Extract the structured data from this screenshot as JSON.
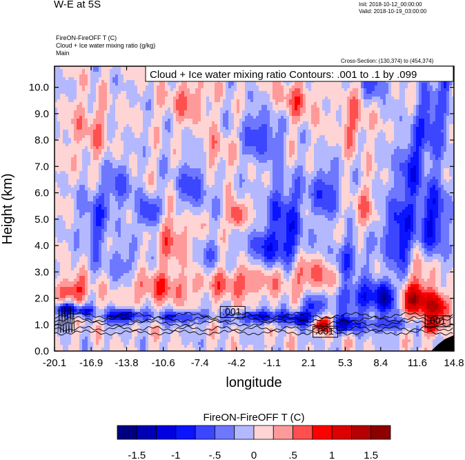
{
  "header": {
    "title": "W-E at 5S",
    "init": "Init: 2018-10-12_00:00:00",
    "valid": "Valid: 2018-10-19_03:00:00",
    "field_line1": "FireON-FireOFF T   (C)",
    "field_line2": "Cloud + Ice water mixing ratio   (g/kg)",
    "field_line3": "Main",
    "cross_section": "Cross-Section: (130,374) to (454,374)"
  },
  "chart_data": {
    "type": "heatmap",
    "title": "W-E at 5S",
    "xlabel": "longitude",
    "ylabel": "Height (km)",
    "xlim": [
      -20.1,
      14.8
    ],
    "ylim": [
      0.0,
      10.8
    ],
    "x_ticks": [
      "-20.1",
      "-16.9",
      "-13.8",
      "-10.6",
      "-7.4",
      "-4.2",
      "-1.1",
      "2.1",
      "5.3",
      "8.4",
      "11.6",
      "14.8"
    ],
    "x_tick_values": [
      -20.1,
      -16.9,
      -13.8,
      -10.6,
      -7.4,
      -4.2,
      -1.1,
      2.1,
      5.3,
      8.4,
      11.6,
      14.8
    ],
    "y_ticks": [
      "0.0",
      "1.0",
      "2.0",
      "3.0",
      "4.0",
      "5.0",
      "6.0",
      "7.0",
      "8.0",
      "9.0",
      "10.0"
    ],
    "y_tick_values": [
      0,
      1,
      2,
      3,
      4,
      5,
      6,
      7,
      8,
      9,
      10
    ],
    "contour_label": "Cloud + Ice water mixing ratio Contours: .001 to .1 by .099",
    "contour_levels": [
      ".001",
      ".001",
      ".001"
    ],
    "contour_level_positions": [
      [
        -5.5,
        1.35
      ],
      [
        2.6,
        0.6
      ],
      [
        12.4,
        1.0
      ]
    ],
    "colorbar": {
      "title": "FireON-FireOFF T  (C)",
      "labels": [
        "-1.5",
        "-1",
        "-.5",
        "0",
        ".5",
        "1",
        "1.5"
      ],
      "colors": [
        "#000080",
        "#0000b4",
        "#0000e0",
        "#0a14ff",
        "#3c46ff",
        "#6e78ff",
        "#b4b9ff",
        "#ffd4d4",
        "#ff9a9a",
        "#ff5050",
        "#ff0000",
        "#dc0000",
        "#b40000",
        "#8c0000"
      ]
    },
    "anomalies": [
      {
        "x": -19.0,
        "y": 1.6,
        "sx": 0.9,
        "sy": 0.25,
        "v": -1.4
      },
      {
        "x": -17.5,
        "y": 1.5,
        "sx": 0.8,
        "sy": 0.2,
        "v": -1.0
      },
      {
        "x": -14.0,
        "y": 1.35,
        "sx": 1.6,
        "sy": 0.25,
        "v": -1.3
      },
      {
        "x": -9.0,
        "y": 1.3,
        "sx": 2.5,
        "sy": 0.25,
        "v": -0.8
      },
      {
        "x": -2.0,
        "y": 1.3,
        "sx": 2.0,
        "sy": 0.25,
        "v": -1.1
      },
      {
        "x": 1.5,
        "y": 1.2,
        "sx": 1.2,
        "sy": 0.25,
        "v": -1.2
      },
      {
        "x": 5.3,
        "y": 1.0,
        "sx": 1.0,
        "sy": 0.3,
        "v": -1.3
      },
      {
        "x": 3.3,
        "y": 1.0,
        "sx": 0.8,
        "sy": 0.3,
        "v": 1.2
      },
      {
        "x": 6.5,
        "y": 2.0,
        "sx": 1.8,
        "sy": 0.6,
        "v": -0.9
      },
      {
        "x": 8.8,
        "y": 2.0,
        "sx": 0.9,
        "sy": 0.6,
        "v": -1.2
      },
      {
        "x": 11.5,
        "y": 1.9,
        "sx": 1.3,
        "sy": 0.6,
        "v": 1.3
      },
      {
        "x": 13.5,
        "y": 1.7,
        "sx": 1.0,
        "sy": 0.5,
        "v": 1.1
      },
      {
        "x": 9.0,
        "y": 1.0,
        "sx": 2.0,
        "sy": 0.3,
        "v": -0.7
      },
      {
        "x": 12.8,
        "y": 0.9,
        "sx": 0.8,
        "sy": 0.3,
        "v": 1.0
      },
      {
        "x": -18.5,
        "y": 2.3,
        "sx": 1.5,
        "sy": 0.5,
        "v": 0.8
      },
      {
        "x": -11.0,
        "y": 2.4,
        "sx": 3.0,
        "sy": 0.6,
        "v": 0.6
      },
      {
        "x": -4.0,
        "y": 2.6,
        "sx": 3.5,
        "sy": 0.6,
        "v": 0.6
      },
      {
        "x": 2.5,
        "y": 2.9,
        "sx": 2.0,
        "sy": 0.7,
        "v": 0.6
      },
      {
        "x": 10.0,
        "y": 4.5,
        "sx": 1.5,
        "sy": 1.5,
        "v": -0.9
      },
      {
        "x": 13.0,
        "y": 5.0,
        "sx": 1.4,
        "sy": 1.5,
        "v": -0.9
      },
      {
        "x": 11.0,
        "y": 7.0,
        "sx": 1.2,
        "sy": 1.2,
        "v": -0.7
      },
      {
        "x": 12.8,
        "y": 8.7,
        "sx": 1.3,
        "sy": 1.3,
        "v": -0.8
      },
      {
        "x": -4.2,
        "y": 5.1,
        "sx": 0.6,
        "sy": 0.5,
        "v": 1.0
      },
      {
        "x": -12.0,
        "y": 5.2,
        "sx": 0.8,
        "sy": 0.7,
        "v": -0.9
      },
      {
        "x": -9.5,
        "y": 4.2,
        "sx": 2.0,
        "sy": 1.0,
        "v": 0.5
      },
      {
        "x": -16.5,
        "y": 5.0,
        "sx": 1.2,
        "sy": 1.4,
        "v": -0.6
      },
      {
        "x": -8.0,
        "y": 6.3,
        "sx": 1.5,
        "sy": 1.0,
        "v": -0.6
      },
      {
        "x": 0.0,
        "y": 5.2,
        "sx": 1.5,
        "sy": 1.3,
        "v": -0.8
      },
      {
        "x": 3.5,
        "y": 6.0,
        "sx": 1.4,
        "sy": 1.0,
        "v": -0.7
      },
      {
        "x": -1.0,
        "y": 3.9,
        "sx": 2.5,
        "sy": 0.7,
        "v": -0.7
      },
      {
        "x": 5.5,
        "y": 3.5,
        "sx": 1.5,
        "sy": 0.8,
        "v": -0.6
      },
      {
        "x": -2.0,
        "y": 8.2,
        "sx": 1.6,
        "sy": 1.0,
        "v": -0.7
      },
      {
        "x": -8.5,
        "y": 9.5,
        "sx": 1.8,
        "sy": 0.8,
        "v": 0.5
      },
      {
        "x": 1.0,
        "y": 9.5,
        "sx": 2.0,
        "sy": 0.8,
        "v": 0.5
      },
      {
        "x": 6.0,
        "y": 8.7,
        "sx": 1.2,
        "sy": 1.0,
        "v": 0.5
      },
      {
        "x": 8.0,
        "y": 10.2,
        "sx": 1.0,
        "sy": 0.6,
        "v": -0.7
      },
      {
        "x": -17.0,
        "y": 8.4,
        "sx": 1.8,
        "sy": 1.3,
        "v": 0.4
      },
      {
        "x": -14.5,
        "y": 6.3,
        "sx": 1.0,
        "sy": 1.0,
        "v": -0.6
      },
      {
        "x": -6.0,
        "y": 7.5,
        "sx": 1.3,
        "sy": 0.8,
        "v": 0.4
      },
      {
        "x": 7.0,
        "y": 5.5,
        "sx": 1.2,
        "sy": 0.8,
        "v": 0.4
      },
      {
        "x": 2.5,
        "y": 1.7,
        "sx": 1.0,
        "sy": 0.4,
        "v": -0.9
      },
      {
        "x": -7.0,
        "y": 3.5,
        "sx": 1.5,
        "sy": 0.8,
        "v": -0.4
      },
      {
        "x": -14.0,
        "y": 3.3,
        "sx": 1.5,
        "sy": 0.8,
        "v": -0.4
      },
      {
        "x": 12.0,
        "y": 3.0,
        "sx": 1.0,
        "sy": 0.8,
        "v": 0.6
      },
      {
        "x": 14.0,
        "y": 10.3,
        "sx": 0.6,
        "sy": 0.6,
        "v": -0.7
      }
    ]
  },
  "legend": {
    "overlay_box": "Cloud + Ice water mixing ratio Contours: .001 to .1 by .099"
  }
}
